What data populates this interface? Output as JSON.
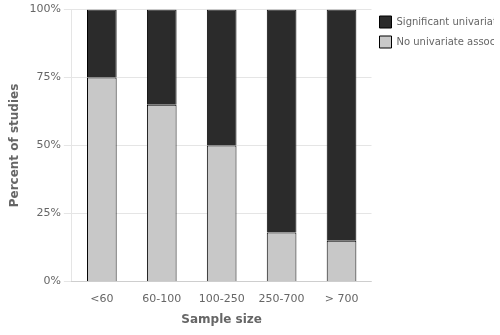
{
  "chart_data": {
    "type": "bar",
    "stacked": true,
    "xlabel": "Sample size",
    "ylabel": "Percent of studies",
    "categories": [
      "<60",
      "60-100",
      "100-250",
      "250-700",
      "> 700"
    ],
    "series": [
      {
        "name": "No univariate association",
        "color": "#c8c8c8",
        "values": [
          75,
          65,
          50,
          18,
          15
        ]
      },
      {
        "name": "Significant univariate association",
        "color": "#2b2b2b",
        "values": [
          25,
          35,
          50,
          82,
          85
        ]
      }
    ],
    "ylim": [
      0,
      100
    ],
    "yticks": [
      {
        "value": 0,
        "label": "0%"
      },
      {
        "value": 25,
        "label": "25%"
      },
      {
        "value": 50,
        "label": "50%"
      },
      {
        "value": 75,
        "label": "75%"
      },
      {
        "value": 100,
        "label": "100%"
      }
    ],
    "grid": true,
    "legend": "right"
  }
}
